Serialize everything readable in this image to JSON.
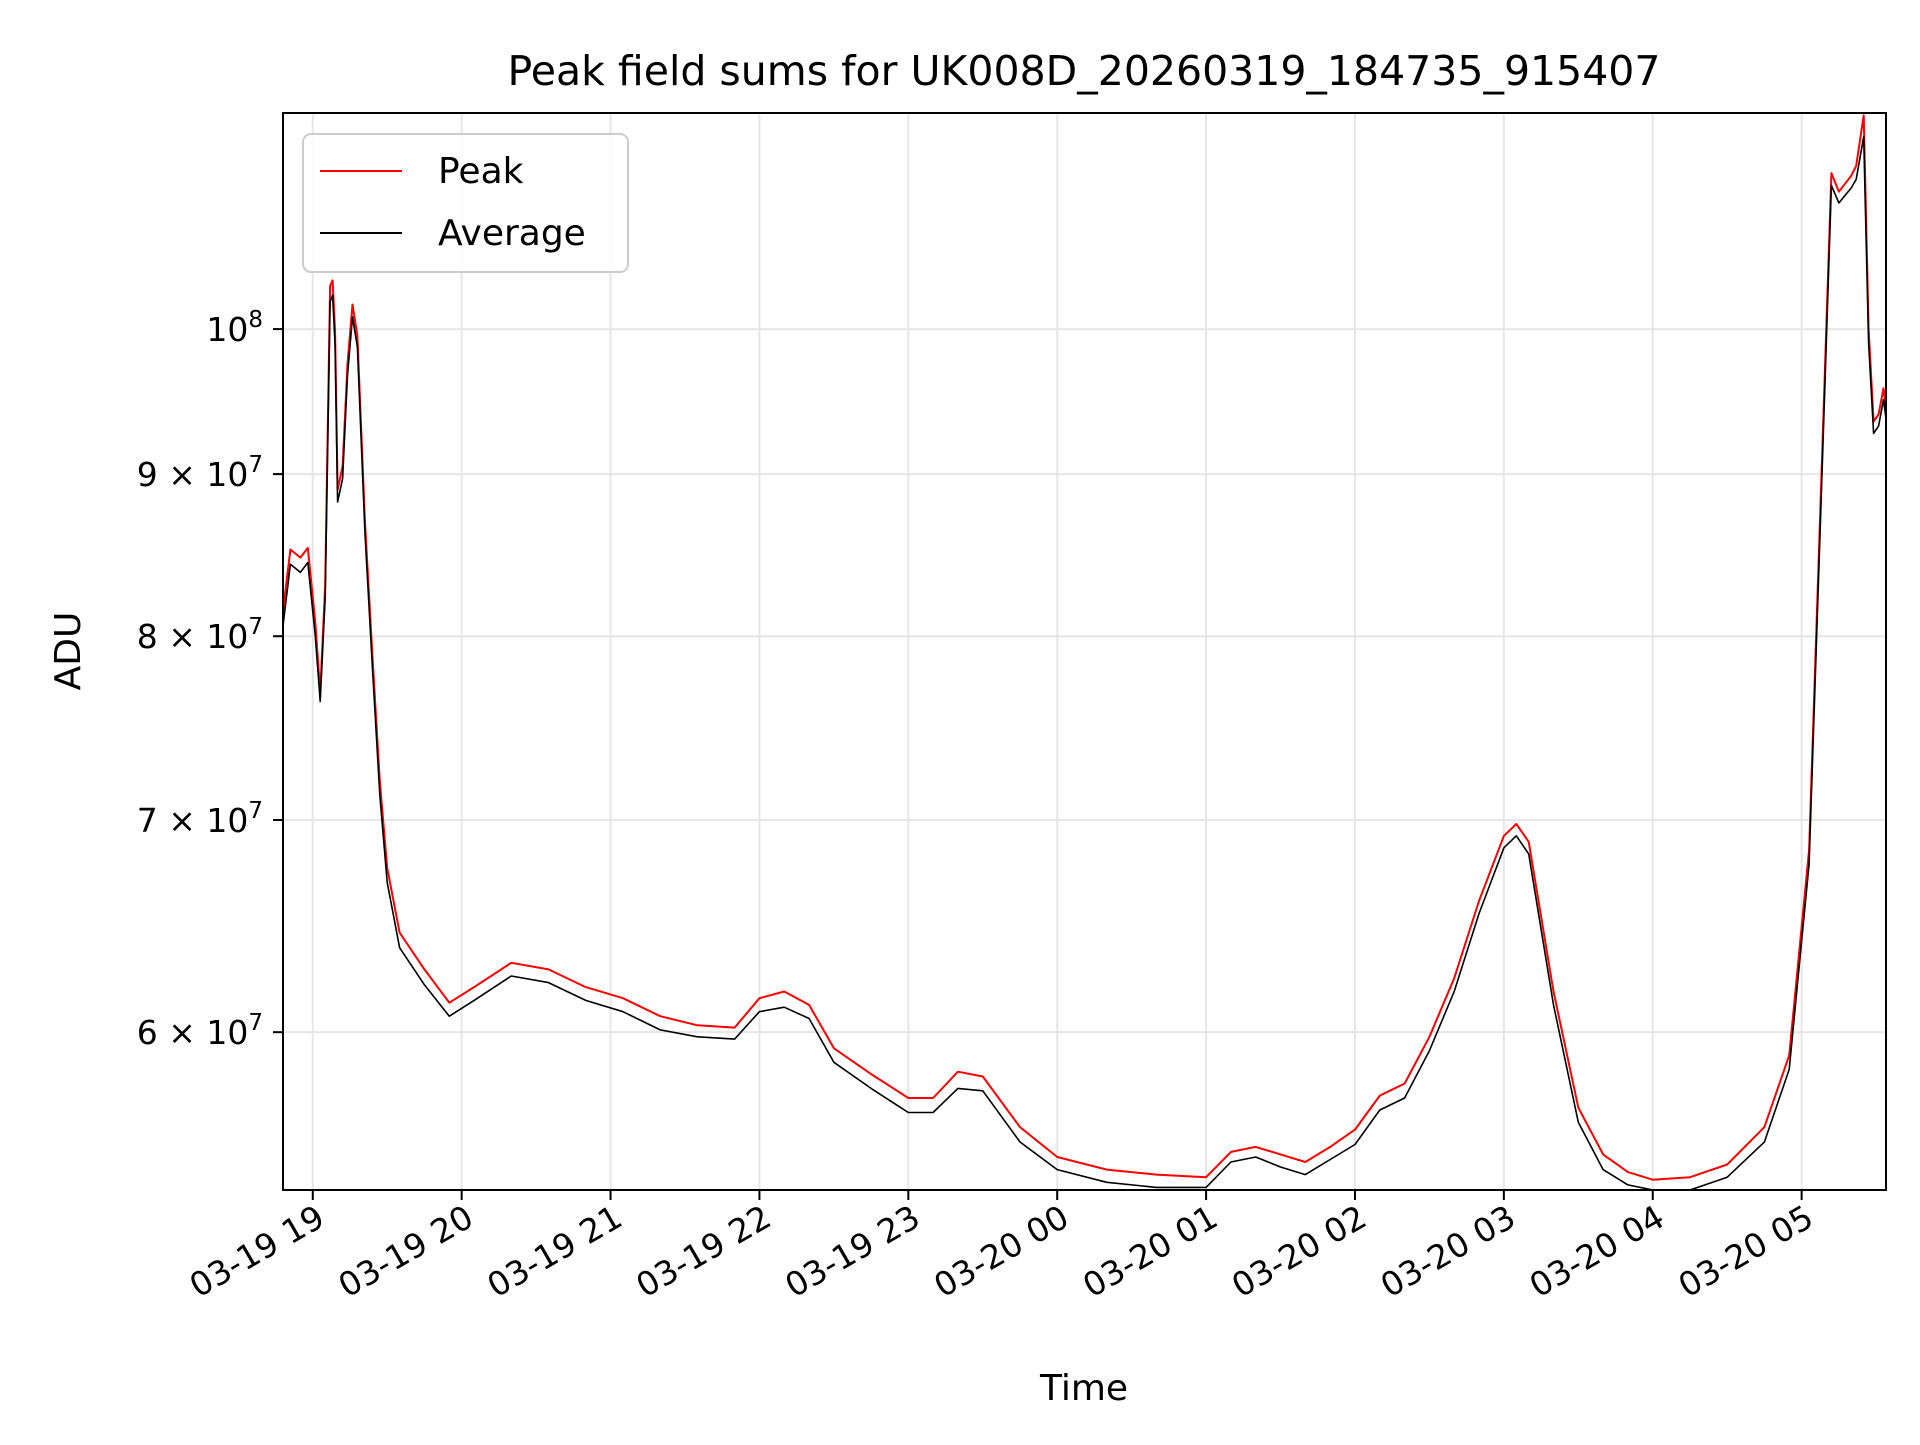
{
  "chart_data": {
    "type": "line",
    "title": "Peak field sums for UK008D_20260319_184735_915407",
    "xlabel": "Time",
    "ylabel": "ADU",
    "y_scale": "log",
    "grid": true,
    "legend_position": "top-left",
    "xlim": [
      "2026-03-19 18:48",
      "2026-03-20 05:34"
    ],
    "ylim": [
      53500000,
      117000000
    ],
    "x_ticks": [
      {
        "value": "2026-03-19 19:00",
        "label": "03-19 19"
      },
      {
        "value": "2026-03-19 20:00",
        "label": "03-19 20"
      },
      {
        "value": "2026-03-19 21:00",
        "label": "03-19 21"
      },
      {
        "value": "2026-03-19 22:00",
        "label": "03-19 22"
      },
      {
        "value": "2026-03-19 23:00",
        "label": "03-19 23"
      },
      {
        "value": "2026-03-20 00:00",
        "label": "03-20 00"
      },
      {
        "value": "2026-03-20 01:00",
        "label": "03-20 01"
      },
      {
        "value": "2026-03-20 02:00",
        "label": "03-20 02"
      },
      {
        "value": "2026-03-20 03:00",
        "label": "03-20 03"
      },
      {
        "value": "2026-03-20 04:00",
        "label": "03-20 04"
      },
      {
        "value": "2026-03-20 05:00",
        "label": "03-20 05"
      }
    ],
    "y_ticks": [
      {
        "value": 60000000,
        "mantissa": "6",
        "exponent": "7"
      },
      {
        "value": 70000000,
        "mantissa": "7",
        "exponent": "7"
      },
      {
        "value": 80000000,
        "mantissa": "8",
        "exponent": "7"
      },
      {
        "value": 90000000,
        "mantissa": "9",
        "exponent": "7"
      },
      {
        "value": 100000000,
        "mantissa": "",
        "exponent": "8"
      }
    ],
    "series": [
      {
        "name": "Peak",
        "color": "#ff0000",
        "points": [
          [
            "2026-03-19 18:48",
            81500000
          ],
          [
            "2026-03-19 18:51",
            85200000
          ],
          [
            "2026-03-19 18:55",
            84700000
          ],
          [
            "2026-03-19 18:58",
            85300000
          ],
          [
            "2026-03-19 19:01",
            80800000
          ],
          [
            "2026-03-19 19:03",
            76800000
          ],
          [
            "2026-03-19 19:05",
            83000000
          ],
          [
            "2026-03-19 19:07",
            103200000
          ],
          [
            "2026-03-19 19:08",
            103600000
          ],
          [
            "2026-03-19 19:09",
            99800000
          ],
          [
            "2026-03-19 19:10",
            89000000
          ],
          [
            "2026-03-19 19:12",
            90500000
          ],
          [
            "2026-03-19 19:14",
            97500000
          ],
          [
            "2026-03-19 19:16",
            101800000
          ],
          [
            "2026-03-19 19:18",
            99500000
          ],
          [
            "2026-03-19 19:21",
            87000000
          ],
          [
            "2026-03-19 19:24",
            79000000
          ],
          [
            "2026-03-19 19:27",
            72000000
          ],
          [
            "2026-03-19 19:30",
            67600000
          ],
          [
            "2026-03-19 19:35",
            64500000
          ],
          [
            "2026-03-19 19:45",
            62800000
          ],
          [
            "2026-03-19 19:55",
            61300000
          ],
          [
            "2026-03-19 20:05",
            62000000
          ],
          [
            "2026-03-19 20:20",
            63100000
          ],
          [
            "2026-03-19 20:35",
            62800000
          ],
          [
            "2026-03-19 20:50",
            62000000
          ],
          [
            "2026-03-19 21:05",
            61500000
          ],
          [
            "2026-03-19 21:20",
            60700000
          ],
          [
            "2026-03-19 21:35",
            60300000
          ],
          [
            "2026-03-19 21:50",
            60200000
          ],
          [
            "2026-03-19 22:00",
            61500000
          ],
          [
            "2026-03-19 22:10",
            61800000
          ],
          [
            "2026-03-19 22:20",
            61200000
          ],
          [
            "2026-03-19 22:30",
            59300000
          ],
          [
            "2026-03-19 22:45",
            58200000
          ],
          [
            "2026-03-19 23:00",
            57200000
          ],
          [
            "2026-03-19 23:10",
            57200000
          ],
          [
            "2026-03-19 23:20",
            58300000
          ],
          [
            "2026-03-19 23:30",
            58100000
          ],
          [
            "2026-03-19 23:45",
            56000000
          ],
          [
            "2026-03-20 00:00",
            54800000
          ],
          [
            "2026-03-20 00:20",
            54300000
          ],
          [
            "2026-03-20 00:40",
            54100000
          ],
          [
            "2026-03-20 01:00",
            54000000
          ],
          [
            "2026-03-20 01:10",
            55000000
          ],
          [
            "2026-03-20 01:20",
            55200000
          ],
          [
            "2026-03-20 01:30",
            54900000
          ],
          [
            "2026-03-20 01:40",
            54600000
          ],
          [
            "2026-03-20 01:50",
            55200000
          ],
          [
            "2026-03-20 02:00",
            55900000
          ],
          [
            "2026-03-20 02:10",
            57300000
          ],
          [
            "2026-03-20 02:20",
            57800000
          ],
          [
            "2026-03-20 02:30",
            59800000
          ],
          [
            "2026-03-20 02:40",
            62400000
          ],
          [
            "2026-03-20 02:50",
            66000000
          ],
          [
            "2026-03-20 03:00",
            69200000
          ],
          [
            "2026-03-20 03:05",
            69800000
          ],
          [
            "2026-03-20 03:10",
            68900000
          ],
          [
            "2026-03-20 03:20",
            61800000
          ],
          [
            "2026-03-20 03:30",
            56800000
          ],
          [
            "2026-03-20 03:40",
            54900000
          ],
          [
            "2026-03-20 03:50",
            54200000
          ],
          [
            "2026-03-20 04:00",
            53900000
          ],
          [
            "2026-03-20 04:15",
            54000000
          ],
          [
            "2026-03-20 04:30",
            54500000
          ],
          [
            "2026-03-20 04:45",
            56000000
          ],
          [
            "2026-03-20 04:55",
            59000000
          ],
          [
            "2026-03-20 05:03",
            68500000
          ],
          [
            "2026-03-20 05:08",
            90000000
          ],
          [
            "2026-03-20 05:12",
            112000000
          ],
          [
            "2026-03-20 05:15",
            110500000
          ],
          [
            "2026-03-20 05:20",
            111800000
          ],
          [
            "2026-03-20 05:22",
            112600000
          ],
          [
            "2026-03-20 05:25",
            116800000
          ],
          [
            "2026-03-20 05:27",
            100000000
          ],
          [
            "2026-03-20 05:29",
            93500000
          ],
          [
            "2026-03-20 05:31",
            94000000
          ],
          [
            "2026-03-20 05:33",
            95800000
          ],
          [
            "2026-03-20 05:34",
            94500000
          ]
        ]
      },
      {
        "name": "Average",
        "color": "#000000",
        "points": [
          [
            "2026-03-19 18:48",
            80600000
          ],
          [
            "2026-03-19 18:51",
            84300000
          ],
          [
            "2026-03-19 18:55",
            83800000
          ],
          [
            "2026-03-19 18:58",
            84400000
          ],
          [
            "2026-03-19 19:01",
            80000000
          ],
          [
            "2026-03-19 19:03",
            76300000
          ],
          [
            "2026-03-19 19:05",
            82300000
          ],
          [
            "2026-03-19 19:07",
            102000000
          ],
          [
            "2026-03-19 19:08",
            102500000
          ],
          [
            "2026-03-19 19:09",
            98800000
          ],
          [
            "2026-03-19 19:10",
            88200000
          ],
          [
            "2026-03-19 19:12",
            89700000
          ],
          [
            "2026-03-19 19:14",
            96700000
          ],
          [
            "2026-03-19 19:16",
            100900000
          ],
          [
            "2026-03-19 19:18",
            98700000
          ],
          [
            "2026-03-19 19:21",
            86300000
          ],
          [
            "2026-03-19 19:24",
            78300000
          ],
          [
            "2026-03-19 19:27",
            71300000
          ],
          [
            "2026-03-19 19:30",
            66900000
          ],
          [
            "2026-03-19 19:35",
            63800000
          ],
          [
            "2026-03-19 19:45",
            62100000
          ],
          [
            "2026-03-19 19:55",
            60700000
          ],
          [
            "2026-03-19 20:05",
            61400000
          ],
          [
            "2026-03-19 20:20",
            62500000
          ],
          [
            "2026-03-19 20:35",
            62200000
          ],
          [
            "2026-03-19 20:50",
            61400000
          ],
          [
            "2026-03-19 21:05",
            60900000
          ],
          [
            "2026-03-19 21:20",
            60100000
          ],
          [
            "2026-03-19 21:35",
            59800000
          ],
          [
            "2026-03-19 21:50",
            59700000
          ],
          [
            "2026-03-19 22:00",
            60900000
          ],
          [
            "2026-03-19 22:10",
            61100000
          ],
          [
            "2026-03-19 22:20",
            60600000
          ],
          [
            "2026-03-19 22:30",
            58700000
          ],
          [
            "2026-03-19 22:45",
            57600000
          ],
          [
            "2026-03-19 23:00",
            56600000
          ],
          [
            "2026-03-19 23:10",
            56600000
          ],
          [
            "2026-03-19 23:20",
            57600000
          ],
          [
            "2026-03-19 23:30",
            57500000
          ],
          [
            "2026-03-19 23:45",
            55400000
          ],
          [
            "2026-03-20 00:00",
            54300000
          ],
          [
            "2026-03-20 00:20",
            53800000
          ],
          [
            "2026-03-20 00:40",
            53600000
          ],
          [
            "2026-03-20 01:00",
            53600000
          ],
          [
            "2026-03-20 01:10",
            54600000
          ],
          [
            "2026-03-20 01:20",
            54800000
          ],
          [
            "2026-03-20 01:30",
            54400000
          ],
          [
            "2026-03-20 01:40",
            54100000
          ],
          [
            "2026-03-20 01:50",
            54700000
          ],
          [
            "2026-03-20 02:00",
            55300000
          ],
          [
            "2026-03-20 02:10",
            56700000
          ],
          [
            "2026-03-20 02:20",
            57200000
          ],
          [
            "2026-03-20 02:30",
            59200000
          ],
          [
            "2026-03-20 02:40",
            61800000
          ],
          [
            "2026-03-20 02:50",
            65400000
          ],
          [
            "2026-03-20 03:00",
            68600000
          ],
          [
            "2026-03-20 03:05",
            69200000
          ],
          [
            "2026-03-20 03:10",
            68300000
          ],
          [
            "2026-03-20 03:20",
            61200000
          ],
          [
            "2026-03-20 03:30",
            56200000
          ],
          [
            "2026-03-20 03:40",
            54300000
          ],
          [
            "2026-03-20 03:50",
            53700000
          ],
          [
            "2026-03-20 04:00",
            53500000
          ],
          [
            "2026-03-20 04:15",
            53500000
          ],
          [
            "2026-03-20 04:30",
            54000000
          ],
          [
            "2026-03-20 04:45",
            55400000
          ],
          [
            "2026-03-20 04:55",
            58400000
          ],
          [
            "2026-03-20 05:03",
            67800000
          ],
          [
            "2026-03-20 05:08",
            89000000
          ],
          [
            "2026-03-20 05:12",
            111000000
          ],
          [
            "2026-03-20 05:15",
            109600000
          ],
          [
            "2026-03-20 05:20",
            110800000
          ],
          [
            "2026-03-20 05:22",
            111500000
          ],
          [
            "2026-03-20 05:25",
            115000000
          ],
          [
            "2026-03-20 05:27",
            99000000
          ],
          [
            "2026-03-20 05:29",
            92700000
          ],
          [
            "2026-03-20 05:31",
            93200000
          ],
          [
            "2026-03-20 05:33",
            95000000
          ],
          [
            "2026-03-20 05:34",
            93700000
          ]
        ]
      }
    ]
  }
}
